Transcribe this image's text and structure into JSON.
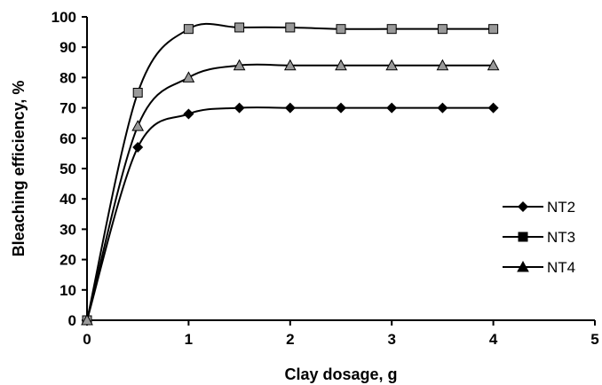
{
  "chart_data": {
    "type": "line",
    "title": "",
    "xlabel": "Clay dosage, g",
    "ylabel": "Bleaching efficiency, %",
    "xlim": [
      0,
      5
    ],
    "ylim": [
      0,
      100
    ],
    "xticks": [
      "0",
      "1",
      "2",
      "3",
      "4",
      "5"
    ],
    "yticks": [
      "0",
      "10",
      "20",
      "30",
      "40",
      "50",
      "60",
      "70",
      "80",
      "90",
      "100"
    ],
    "grid": false,
    "smooth": true,
    "legend_position": "right",
    "x": [
      0,
      0.5,
      1,
      1.5,
      2,
      2.5,
      3,
      3.5,
      4
    ],
    "series": [
      {
        "name": "NT2",
        "marker": "diamond",
        "marker_fill": "#000000",
        "values": [
          0,
          57,
          68,
          70,
          70,
          70,
          70,
          70,
          70
        ]
      },
      {
        "name": "NT3",
        "marker": "square",
        "marker_fill": "#999999",
        "values": [
          0,
          75,
          96,
          96.5,
          96.5,
          96,
          96,
          96,
          96
        ]
      },
      {
        "name": "NT4",
        "marker": "triangle",
        "marker_fill": "#999999",
        "values": [
          0,
          64,
          80,
          84,
          84,
          84,
          84,
          84,
          84
        ]
      }
    ]
  }
}
